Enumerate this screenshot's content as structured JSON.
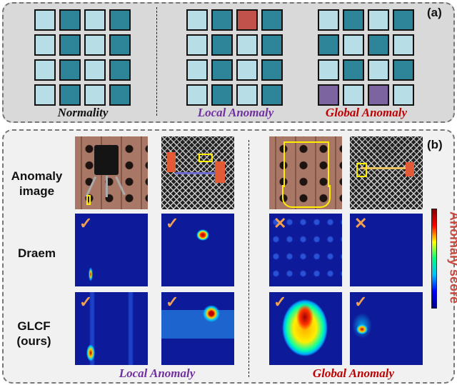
{
  "panel_a": {
    "tag": "(a)",
    "groups": [
      {
        "label": "Normality",
        "color": "#111111",
        "grid": [
          "LDLD",
          "LDLD",
          "LDLD",
          "LDLD"
        ]
      },
      {
        "label": "Local Anomaly",
        "color": "#7030a0",
        "grid": [
          "LDRD",
          "LDLD",
          "LDLD",
          "LDLD"
        ]
      },
      {
        "label": "Global Anomaly",
        "color": "#c00000",
        "grid": [
          "LDLD",
          "DLDL",
          "LDLD",
          "PLPL"
        ]
      }
    ],
    "cell_colors": {
      "L": "#b7dde6",
      "D": "#2e8599",
      "R": "#c0524a",
      "P": "#7c64a0"
    }
  },
  "panel_b": {
    "tag": "(b)",
    "row_labels": [
      "Anomaly image",
      "Draem",
      "GLCF (ours)"
    ],
    "group_labels": [
      {
        "label": "Local Anomaly",
        "color": "#7030a0"
      },
      {
        "label": "Global Anomaly",
        "color": "#c00000"
      }
    ],
    "draem_marks": [
      "✓",
      "✓",
      "✕",
      "✕"
    ],
    "glcf_marks": [
      "✓",
      "✓",
      "✓",
      "✓"
    ],
    "colorbar_label": "Anomaly score"
  }
}
